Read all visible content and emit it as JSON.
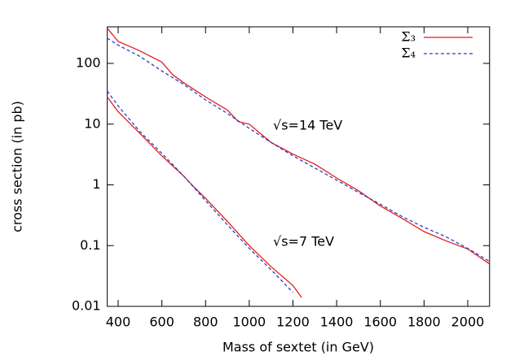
{
  "chart_data": {
    "type": "line",
    "x_label": "Mass of sextet (in GeV)",
    "y_label": "cross section (in pb)",
    "log_y": true,
    "xlim": [
      350,
      2100
    ],
    "ylim": [
      0.01,
      400
    ],
    "xticks": [
      400,
      600,
      800,
      1000,
      1200,
      1400,
      1600,
      1800,
      2000
    ],
    "yticks": [
      0.01,
      0.1,
      1,
      10,
      100
    ],
    "annotations": [
      "√s=14 TeV",
      "√s=7 TeV"
    ],
    "series": [
      {
        "name": "Σ₃",
        "color": "#e41a1c",
        "dash": "solid",
        "x": [
          350,
          400,
          500,
          600,
          650,
          700,
          800,
          900,
          950,
          1000,
          1100,
          1200,
          1300,
          1400,
          1500,
          1600,
          1700,
          1800,
          1900,
          2000,
          2100
        ],
        "values": [
          380,
          230,
          160,
          105,
          65,
          48,
          28,
          17,
          11,
          10,
          5.0,
          3.2,
          2.2,
          1.3,
          0.8,
          0.45,
          0.28,
          0.17,
          0.12,
          0.088,
          0.05
        ]
      },
      {
        "name": "Σ₄",
        "color": "#2b3fc4",
        "dash": "dashed",
        "x": [
          350,
          400,
          500,
          600,
          700,
          800,
          900,
          1000,
          1100,
          1200,
          1300,
          1400,
          1500,
          1600,
          1700,
          1800,
          1900,
          2000,
          2100
        ],
        "values": [
          260,
          200,
          130,
          75,
          45,
          25,
          15,
          8.5,
          5,
          3,
          1.9,
          1.2,
          0.75,
          0.48,
          0.3,
          0.2,
          0.14,
          0.09,
          0.055
        ]
      },
      {
        "name": "Σ₃",
        "color": "#e41a1c",
        "dash": "solid",
        "x": [
          350,
          400,
          500,
          600,
          700,
          750,
          800,
          900,
          1000,
          1100,
          1200,
          1240
        ],
        "values": [
          28,
          16,
          7,
          3.0,
          1.4,
          0.9,
          0.6,
          0.25,
          0.1,
          0.045,
          0.022,
          0.014
        ]
      },
      {
        "name": "Σ₄",
        "color": "#2b3fc4",
        "dash": "dashed",
        "x": [
          350,
          400,
          500,
          600,
          700,
          800,
          900,
          1000,
          1100,
          1200
        ],
        "values": [
          35,
          20,
          7.5,
          3.3,
          1.4,
          0.55,
          0.22,
          0.09,
          0.04,
          0.017
        ]
      }
    ]
  }
}
